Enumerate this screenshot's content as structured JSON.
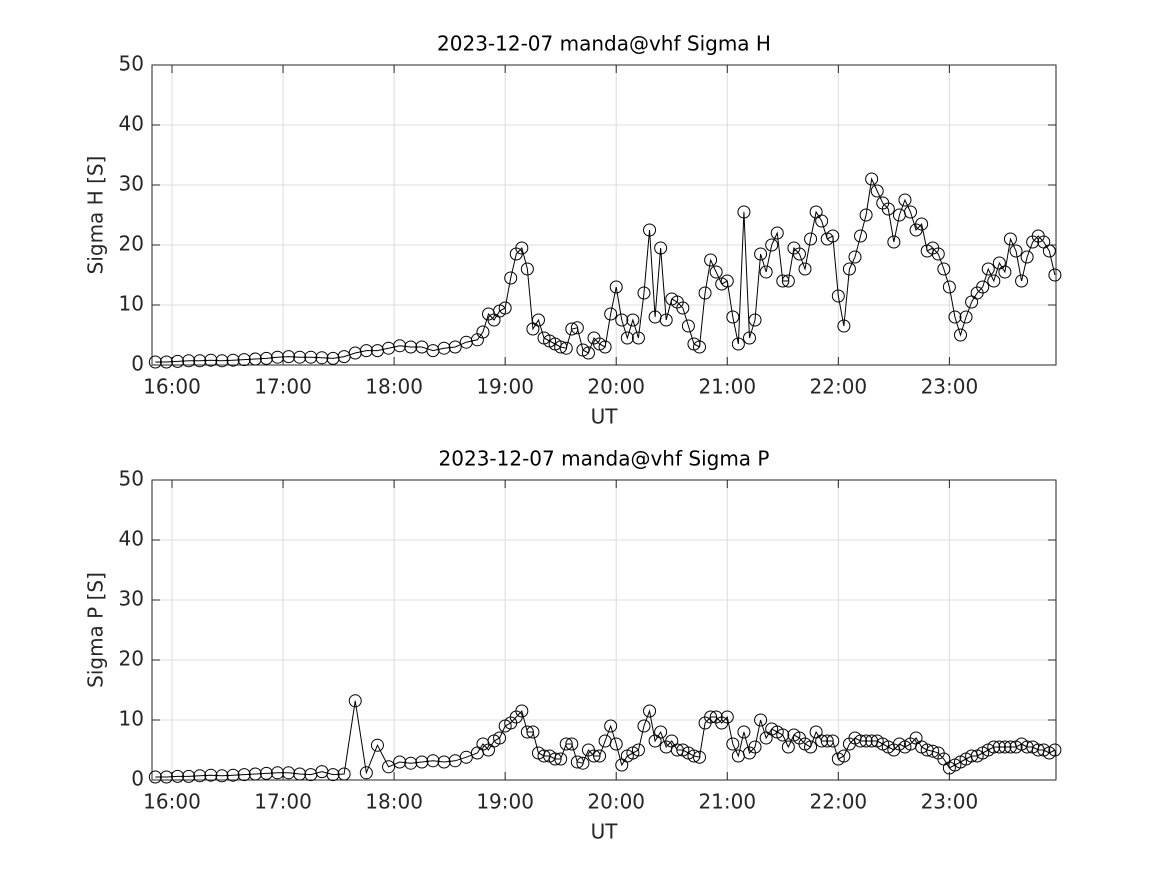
{
  "chart_data": [
    {
      "type": "line",
      "title": "2023-12-07  manda@vhf Sigma H",
      "xlabel": "UT",
      "ylabel": "Sigma H [S]",
      "color": "#000000",
      "marker": "circle",
      "grid": true,
      "x": [
        15.85,
        15.95,
        16.05,
        16.15,
        16.25,
        16.35,
        16.45,
        16.55,
        16.65,
        16.75,
        16.85,
        16.95,
        17.05,
        17.15,
        17.25,
        17.35,
        17.45,
        17.55,
        17.65,
        17.75,
        17.85,
        17.95,
        18.05,
        18.15,
        18.25,
        18.35,
        18.45,
        18.55,
        18.65,
        18.75,
        18.8,
        18.85,
        18.9,
        18.95,
        19.0,
        19.05,
        19.1,
        19.15,
        19.2,
        19.25,
        19.3,
        19.35,
        19.4,
        19.45,
        19.5,
        19.55,
        19.6,
        19.65,
        19.7,
        19.75,
        19.8,
        19.85,
        19.9,
        19.95,
        20.0,
        20.05,
        20.1,
        20.15,
        20.2,
        20.25,
        20.3,
        20.35,
        20.4,
        20.45,
        20.5,
        20.55,
        20.6,
        20.65,
        20.7,
        20.75,
        20.8,
        20.85,
        20.9,
        20.95,
        21.0,
        21.05,
        21.1,
        21.15,
        21.2,
        21.25,
        21.3,
        21.35,
        21.4,
        21.45,
        21.5,
        21.55,
        21.6,
        21.65,
        21.7,
        21.75,
        21.8,
        21.85,
        21.9,
        21.95,
        22.0,
        22.05,
        22.1,
        22.15,
        22.2,
        22.25,
        22.3,
        22.35,
        22.4,
        22.45,
        22.5,
        22.55,
        22.6,
        22.65,
        22.7,
        22.75,
        22.8,
        22.85,
        22.9,
        22.95,
        23.0,
        23.05,
        23.1,
        23.15,
        23.2,
        23.25,
        23.3,
        23.35,
        23.4,
        23.45,
        23.5,
        23.55,
        23.6,
        23.65,
        23.7,
        23.75,
        23.8,
        23.85,
        23.9,
        23.95
      ],
      "values": [
        0.5,
        0.5,
        0.6,
        0.7,
        0.7,
        0.8,
        0.7,
        0.8,
        0.9,
        1.0,
        1.1,
        1.3,
        1.4,
        1.3,
        1.3,
        1.2,
        1.1,
        1.4,
        2.0,
        2.4,
        2.4,
        2.8,
        3.2,
        3.0,
        3.0,
        2.4,
        2.8,
        3.0,
        3.8,
        4.2,
        5.5,
        8.5,
        7.5,
        9,
        9.5,
        14.5,
        18.5,
        19.5,
        16,
        6,
        7.5,
        4.5,
        4,
        3.5,
        3,
        2.8,
        6,
        6.2,
        2.5,
        2,
        4.5,
        3.5,
        3,
        8.5,
        13,
        7.5,
        4.5,
        7.5,
        4.5,
        12,
        22.5,
        8,
        19.5,
        7.5,
        11,
        10.5,
        9.5,
        6.5,
        3.5,
        3,
        12,
        17.5,
        15.5,
        13.5,
        14,
        8,
        3.5,
        25.5,
        4.5,
        7.5,
        18.5,
        15.5,
        20,
        22,
        14,
        14,
        19.5,
        18.5,
        16,
        21,
        25.5,
        24,
        21,
        21.5,
        11.5,
        6.5,
        16,
        18,
        21.5,
        25,
        31,
        29,
        27,
        26,
        20.5,
        25,
        27.5,
        25.5,
        22.5,
        23.5,
        19,
        19.5,
        18.5,
        16,
        13,
        8,
        5,
        8,
        10.5,
        12,
        13,
        16,
        14,
        17,
        15.5,
        21,
        19,
        14,
        18,
        20.5,
        21.5,
        20.5,
        19,
        15
      ],
      "xlim": [
        15.82,
        23.96
      ],
      "ylim": [
        0,
        50
      ],
      "xticks": [
        {
          "value": 16,
          "label": "16:00"
        },
        {
          "value": 17,
          "label": "17:00"
        },
        {
          "value": 18,
          "label": "18:00"
        },
        {
          "value": 19,
          "label": "19:00"
        },
        {
          "value": 20,
          "label": "20:00"
        },
        {
          "value": 21,
          "label": "21:00"
        },
        {
          "value": 22,
          "label": "22:00"
        },
        {
          "value": 23,
          "label": "23:00"
        }
      ],
      "yticks": [
        0,
        10,
        20,
        30,
        40,
        50
      ]
    },
    {
      "type": "line",
      "title": "2023-12-07  manda@vhf Sigma P",
      "xlabel": "UT",
      "ylabel": "Sigma P [S]",
      "color": "#000000",
      "marker": "circle",
      "grid": true,
      "x": [
        15.85,
        15.95,
        16.05,
        16.15,
        16.25,
        16.35,
        16.45,
        16.55,
        16.65,
        16.75,
        16.85,
        16.95,
        17.05,
        17.15,
        17.25,
        17.35,
        17.45,
        17.55,
        17.65,
        17.75,
        17.85,
        17.95,
        18.05,
        18.15,
        18.25,
        18.35,
        18.45,
        18.55,
        18.65,
        18.75,
        18.8,
        18.85,
        18.9,
        18.95,
        19.0,
        19.05,
        19.1,
        19.15,
        19.2,
        19.25,
        19.3,
        19.35,
        19.4,
        19.45,
        19.5,
        19.55,
        19.6,
        19.65,
        19.7,
        19.75,
        19.8,
        19.85,
        19.9,
        19.95,
        20.0,
        20.05,
        20.1,
        20.15,
        20.2,
        20.25,
        20.3,
        20.35,
        20.4,
        20.45,
        20.5,
        20.55,
        20.6,
        20.65,
        20.7,
        20.75,
        20.8,
        20.85,
        20.9,
        20.95,
        21.0,
        21.05,
        21.1,
        21.15,
        21.2,
        21.25,
        21.3,
        21.35,
        21.4,
        21.45,
        21.5,
        21.55,
        21.6,
        21.65,
        21.7,
        21.75,
        21.8,
        21.85,
        21.9,
        21.95,
        22.0,
        22.05,
        22.1,
        22.15,
        22.2,
        22.25,
        22.3,
        22.35,
        22.4,
        22.45,
        22.5,
        22.55,
        22.6,
        22.65,
        22.7,
        22.75,
        22.8,
        22.85,
        22.9,
        22.95,
        23.0,
        23.05,
        23.1,
        23.15,
        23.2,
        23.25,
        23.3,
        23.35,
        23.4,
        23.45,
        23.5,
        23.55,
        23.6,
        23.65,
        23.7,
        23.75,
        23.8,
        23.85,
        23.9,
        23.95
      ],
      "values": [
        0.5,
        0.5,
        0.6,
        0.6,
        0.7,
        0.8,
        0.7,
        0.8,
        0.9,
        1.0,
        1.1,
        1.2,
        1.2,
        1.0,
        0.9,
        1.4,
        0.9,
        1.0,
        13.2,
        1.2,
        5.8,
        2.2,
        3,
        2.8,
        3,
        3.2,
        3,
        3.2,
        3.8,
        4.5,
        6,
        5,
        6.5,
        7,
        9,
        9.5,
        10.5,
        11.5,
        8,
        8,
        4.5,
        4,
        4,
        3.5,
        3.5,
        6,
        6,
        3,
        2.8,
        5,
        4,
        4,
        6.5,
        9,
        6,
        2.5,
        4,
        4.5,
        5,
        9,
        11.5,
        6.5,
        8,
        5.5,
        6.5,
        5,
        5,
        4.5,
        4,
        3.8,
        9.5,
        10.5,
        10.5,
        9.5,
        10.5,
        6,
        4,
        8,
        4.5,
        5.5,
        10,
        7,
        8.5,
        8,
        7.5,
        5.5,
        7.5,
        7,
        6,
        5.5,
        8,
        6.5,
        6.5,
        6.5,
        3.5,
        4,
        6,
        7,
        6.5,
        6.5,
        6.5,
        6.5,
        6,
        5.5,
        5,
        6,
        5.5,
        6,
        7,
        5.5,
        5,
        4.8,
        4.5,
        3.5,
        2,
        2.5,
        3,
        3.5,
        4,
        4,
        4.5,
        5,
        5.5,
        5.5,
        5.5,
        5.5,
        5.5,
        6,
        5.5,
        5.5,
        5,
        5,
        4.5,
        5
      ],
      "xlim": [
        15.82,
        23.96
      ],
      "ylim": [
        0,
        50
      ],
      "xticks": [
        {
          "value": 16,
          "label": "16:00"
        },
        {
          "value": 17,
          "label": "17:00"
        },
        {
          "value": 18,
          "label": "18:00"
        },
        {
          "value": 19,
          "label": "19:00"
        },
        {
          "value": 20,
          "label": "20:00"
        },
        {
          "value": 21,
          "label": "21:00"
        },
        {
          "value": 22,
          "label": "22:00"
        },
        {
          "value": 23,
          "label": "23:00"
        }
      ],
      "yticks": [
        0,
        10,
        20,
        30,
        40,
        50
      ]
    }
  ]
}
